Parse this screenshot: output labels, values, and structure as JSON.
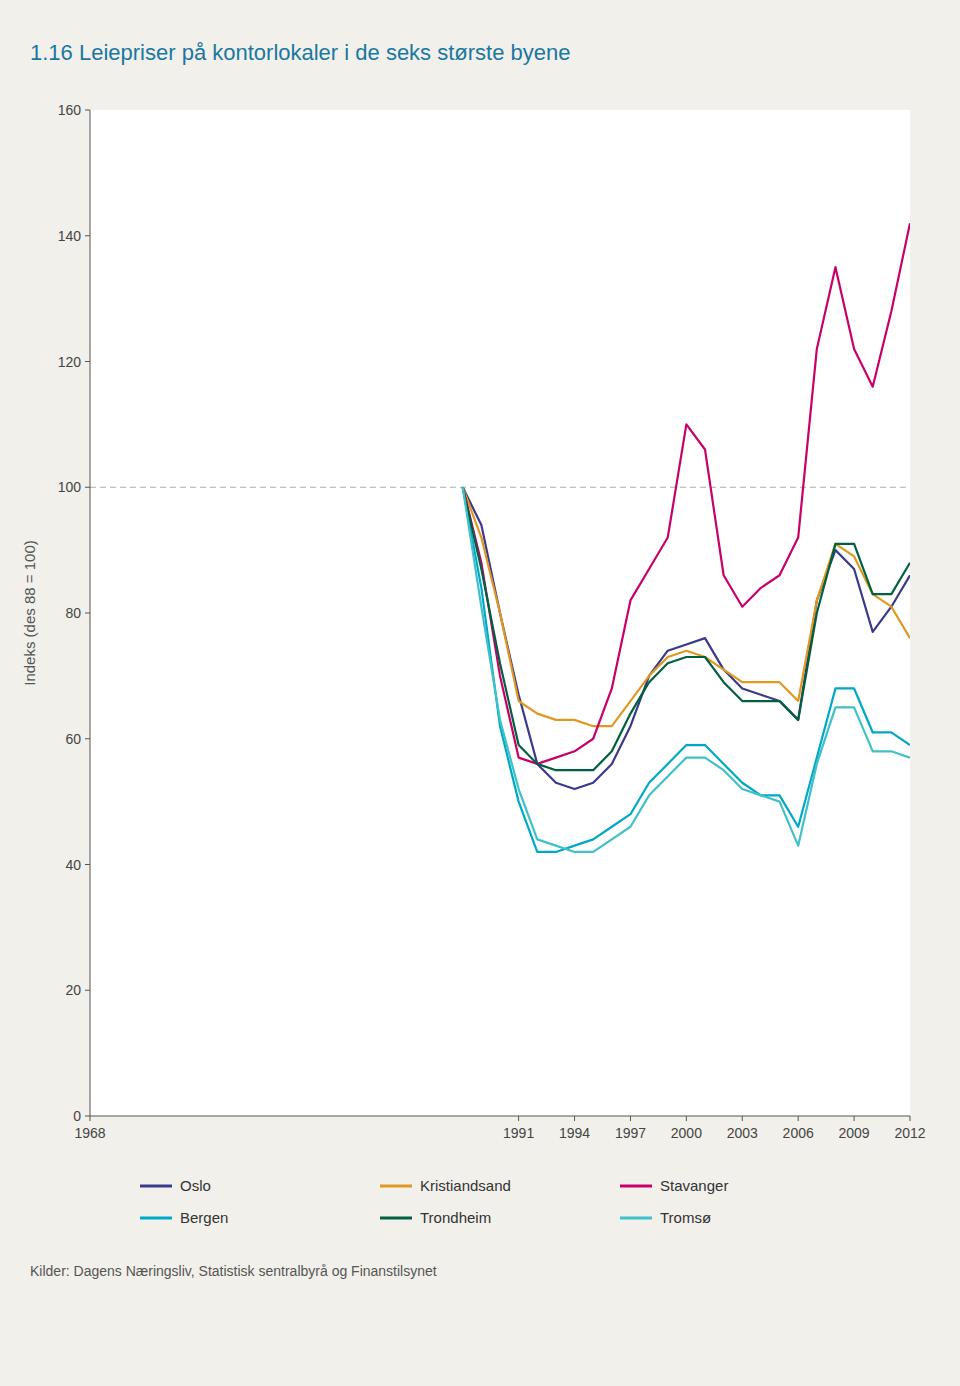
{
  "chart_data": {
    "type": "line",
    "title": "1.16 Leiepriser på kontorlokaler i de seks største byene",
    "ylabel": "Indeks (des 88 = 100)",
    "annotations": [
      "Kilder: Dagens Næringsliv, Statistisk sentralbyrå og Finanstilsynet"
    ],
    "x": [
      1988,
      1989,
      1990,
      1991,
      1992,
      1993,
      1994,
      1995,
      1996,
      1997,
      1998,
      1999,
      2000,
      2001,
      2002,
      2003,
      2004,
      2005,
      2006,
      2007,
      2008,
      2009,
      2010,
      2011,
      2012
    ],
    "series": [
      {
        "name": "Oslo",
        "color": "#3a3a8c",
        "values": [
          100,
          94,
          80,
          67,
          56,
          53,
          52,
          53,
          56,
          62,
          70,
          74,
          75,
          76,
          71,
          68,
          67,
          66,
          63,
          82,
          90,
          87,
          77,
          81,
          86
        ]
      },
      {
        "name": "Kristiandsand",
        "color": "#e09820",
        "values": [
          100,
          92,
          80,
          66,
          64,
          63,
          63,
          62,
          62,
          66,
          70,
          73,
          74,
          73,
          71,
          69,
          69,
          69,
          66,
          82,
          91,
          89,
          83,
          81,
          76
        ]
      },
      {
        "name": "Stavanger",
        "color": "#c8006a",
        "values": [
          100,
          88,
          70,
          57,
          56,
          57,
          58,
          60,
          68,
          82,
          87,
          92,
          110,
          106,
          86,
          81,
          84,
          86,
          92,
          122,
          135,
          122,
          116,
          128,
          142
        ]
      },
      {
        "name": "Bergen",
        "color": "#00a8c8",
        "values": [
          100,
          84,
          62,
          50,
          42,
          42,
          43,
          44,
          46,
          48,
          53,
          56,
          59,
          59,
          56,
          53,
          51,
          51,
          46,
          57,
          68,
          68,
          61,
          61,
          59
        ]
      },
      {
        "name": "Trondheim",
        "color": "#006040",
        "values": [
          100,
          87,
          72,
          59,
          56,
          55,
          55,
          55,
          58,
          64,
          69,
          72,
          73,
          73,
          69,
          66,
          66,
          66,
          63,
          80,
          91,
          91,
          83,
          83,
          88
        ]
      },
      {
        "name": "Tromsø",
        "color": "#40c0c8",
        "values": [
          100,
          81,
          63,
          52,
          44,
          43,
          42,
          42,
          44,
          46,
          51,
          54,
          57,
          57,
          55,
          52,
          51,
          50,
          43,
          56,
          65,
          65,
          58,
          58,
          57
        ]
      }
    ],
    "reference_line": 100,
    "xlim": [
      1968,
      2012
    ],
    "xticks": [
      1968,
      1991,
      1994,
      1997,
      2000,
      2003,
      2006,
      2009,
      2012
    ],
    "ylim": [
      0,
      160
    ],
    "yticks": [
      0,
      20,
      40,
      60,
      80,
      100,
      120,
      140,
      160
    ],
    "grid": false,
    "legend": "bottom"
  }
}
